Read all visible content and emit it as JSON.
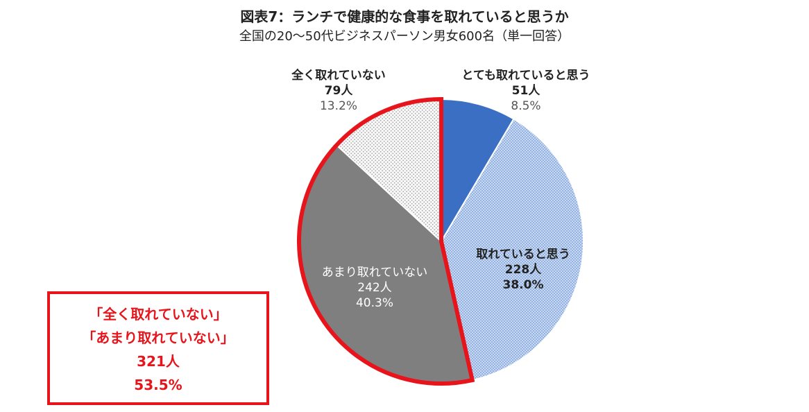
{
  "title": "図表7：ランチで健康的な食事を取れていると思うか",
  "subtitle": "全国の20～50代ビジネスパーソン男女600名（単一回答）",
  "chart_data": {
    "type": "pie",
    "total": 600,
    "start": "12 o'clock",
    "direction": "clockwise",
    "slices": [
      {
        "label": "とても取れていると思う",
        "count": 51,
        "count_label": "51人",
        "percent": 8.5,
        "percent_label": "8.5%",
        "color": "#3a6fc4",
        "fill": "solid"
      },
      {
        "label": "取れていると思う",
        "count": 228,
        "count_label": "228人",
        "percent": 38.0,
        "percent_label": "38.0%",
        "color": "#a9c3e6",
        "fill": "dotted pattern"
      },
      {
        "label": "あまり取れていない",
        "count": 242,
        "count_label": "242人",
        "percent": 40.3,
        "percent_label": "40.3%",
        "color": "#7f7f7f",
        "fill": "solid"
      },
      {
        "label": "全く取れていない",
        "count": 79,
        "count_label": "79人",
        "percent": 13.2,
        "percent_label": "13.2%",
        "color": "#e6e6e6",
        "fill": "dotted pattern"
      }
    ],
    "highlight": {
      "slices": [
        "あまり取れていない",
        "全く取れていない"
      ],
      "outline_color": "#e8141b"
    }
  },
  "summary": {
    "line1": "「全く取れていない」",
    "line2": "「あまり取れていない」",
    "count": "321人",
    "percent": "53.5%",
    "color": "#e8141b"
  }
}
